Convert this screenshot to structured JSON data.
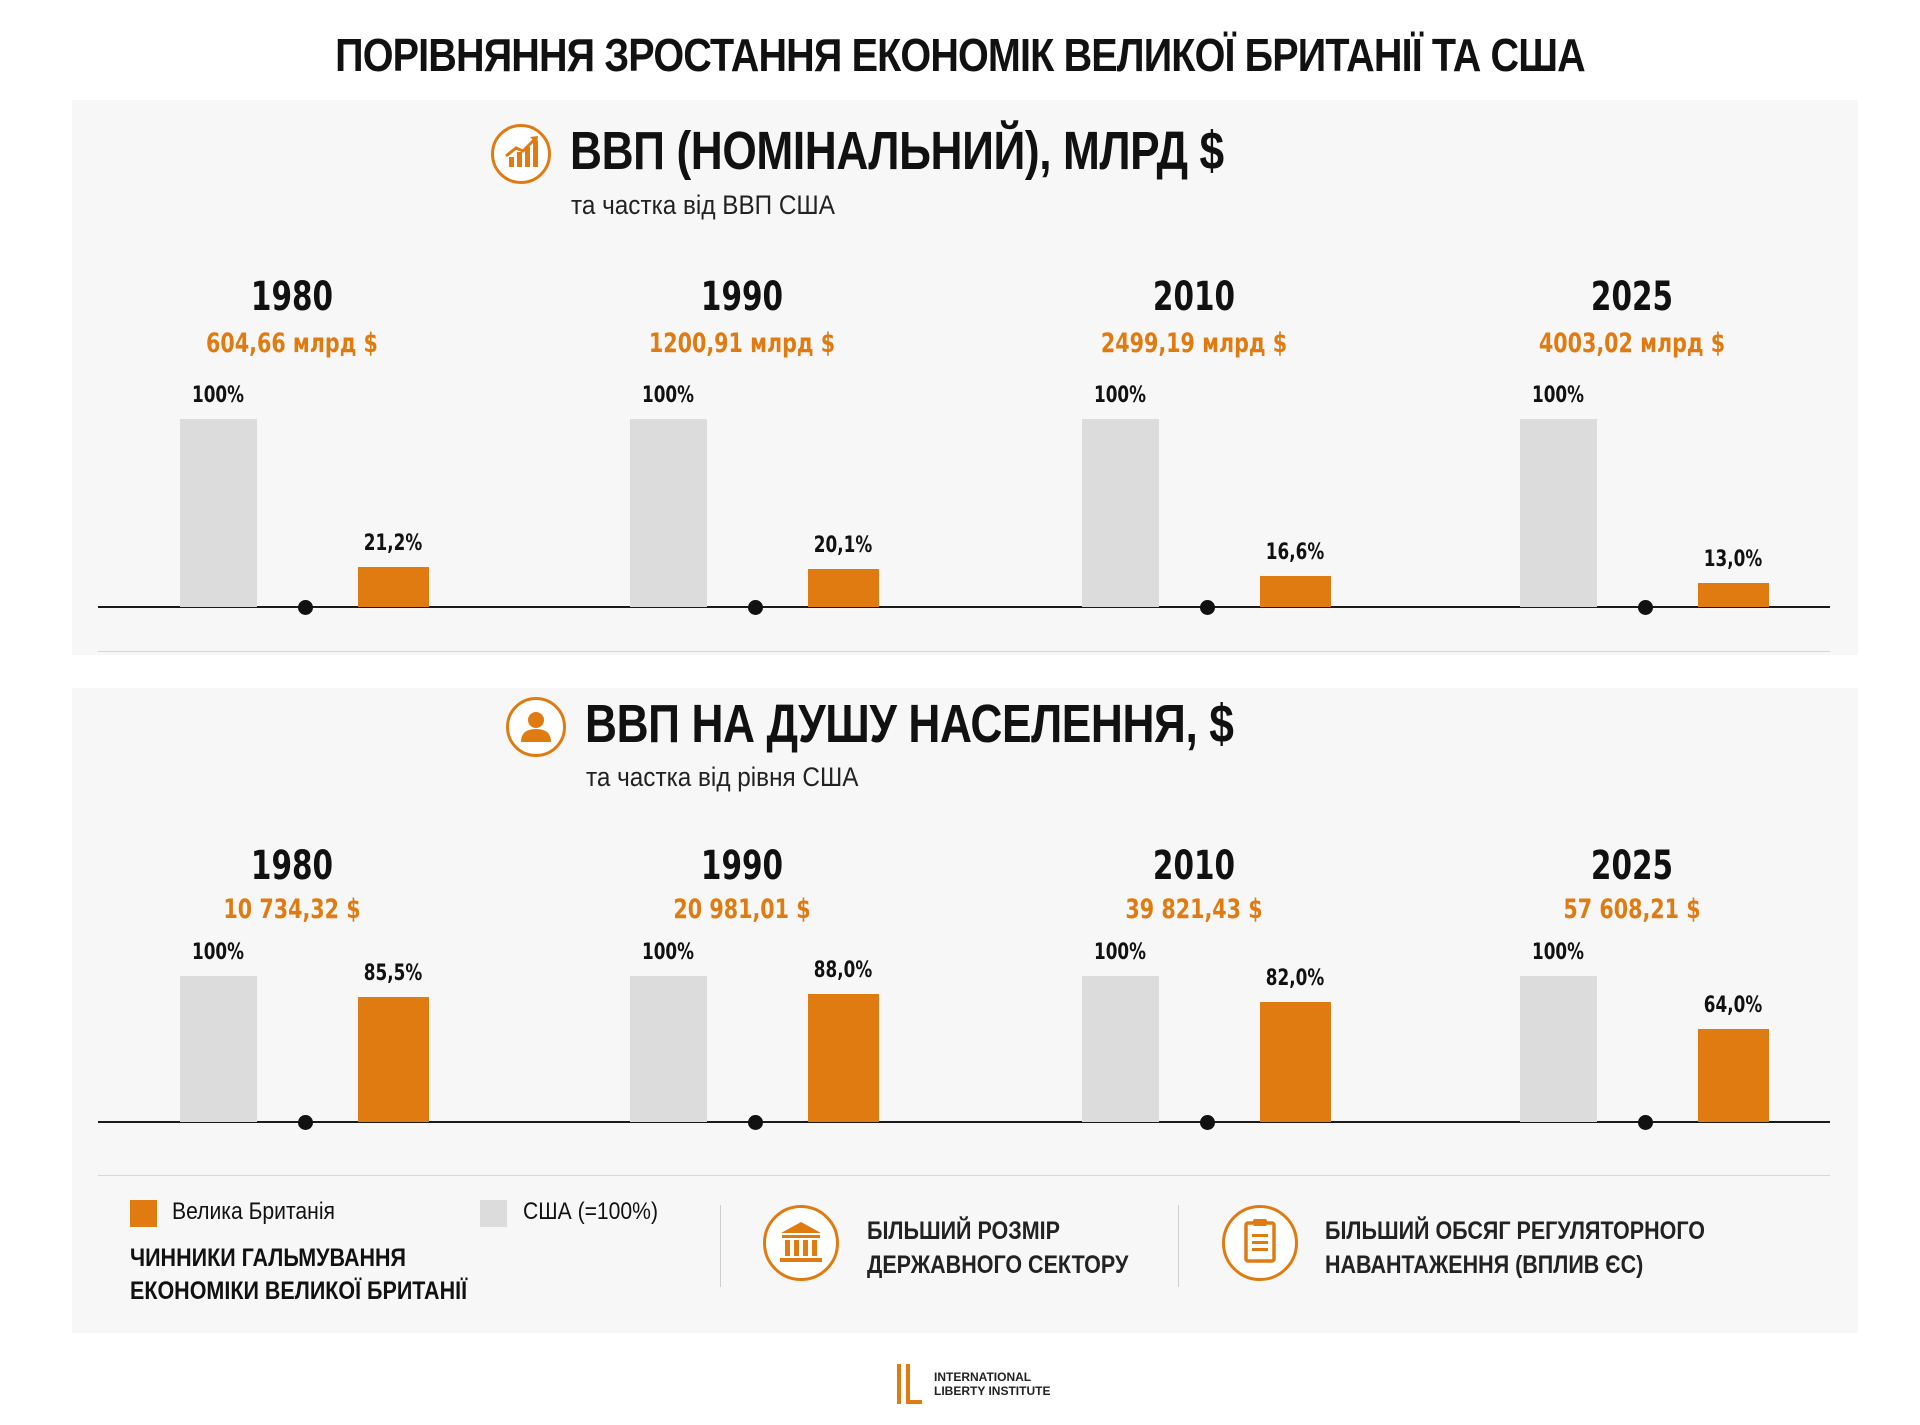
{
  "title": "ПОРІВНЯННЯ ЗРОСТАННЯ ЕКОНОМІК ВЕЛИКОЇ БРИТАНІЇ ТА США",
  "colors": {
    "uk": "#e07b12",
    "us": "#dcdcdc"
  },
  "chart_data": [
    {
      "type": "bar",
      "title": "ВВП (НОМІНАЛЬНИЙ), МЛРД $",
      "subtitle": "та частка від ВВП США",
      "icon": "growth-chart-icon",
      "categories": [
        "1980",
        "1990",
        "2010",
        "2025"
      ],
      "uk_values_label": [
        "604,66 млрд $",
        "1200,91 млрд $",
        "2499,19 млрд $",
        "4003,02 млрд $"
      ],
      "series": [
        {
          "name": "США (=100%)",
          "values": [
            100,
            100,
            100,
            100
          ],
          "labels": [
            "100%",
            "100%",
            "100%",
            "100%"
          ]
        },
        {
          "name": "Велика Британія",
          "values": [
            21.2,
            20.1,
            16.6,
            13.0
          ],
          "labels": [
            "21,2%",
            "20,1%",
            "16,6%",
            "13,0%"
          ]
        }
      ]
    },
    {
      "type": "bar",
      "title": "ВВП НА ДУШУ НАСЕЛЕННЯ, $",
      "subtitle": "та частка від рівня США",
      "icon": "person-icon",
      "categories": [
        "1980",
        "1990",
        "2010",
        "2025"
      ],
      "uk_values_label": [
        "10 734,32 $",
        "20 981,01 $",
        "39 821,43 $",
        "57 608,21 $"
      ],
      "series": [
        {
          "name": "США (=100%)",
          "values": [
            100,
            100,
            100,
            100
          ],
          "labels": [
            "100%",
            "100%",
            "100%",
            "100%"
          ]
        },
        {
          "name": "Велика Британія",
          "values": [
            85.5,
            88.0,
            82.0,
            64.0
          ],
          "labels": [
            "85,5%",
            "88,0%",
            "82,0%",
            "64,0%"
          ]
        }
      ]
    }
  ],
  "legend": {
    "uk_label": "Велика Британія",
    "us_label": "США (=100%)",
    "factors_title_1": "ЧИННИКИ ГАЛЬМУВАННЯ",
    "factors_title_2": "ЕКОНОМІКИ ВЕЛИКОЇ БРИТАНІЇ"
  },
  "factors": [
    {
      "icon": "government-building-icon",
      "line1": "БІЛЬШИЙ РОЗМІР",
      "line2": "ДЕРЖАВНОГО СЕКТОРУ"
    },
    {
      "icon": "clipboard-icon",
      "line1": "БІЛЬШИЙ ОБСЯГ РЕГУЛЯТОРНОГО",
      "line2": "НАВАНТАЖЕННЯ (ВПЛИВ ЄС)"
    }
  ],
  "logo": {
    "line1": "INTERNATIONAL",
    "line2": "LIBERTY INSTITUTE"
  }
}
